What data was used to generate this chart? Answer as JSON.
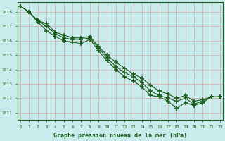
{
  "title": "Graphe pression niveau de la mer (hPa)",
  "bg_color": "#c8ecec",
  "grid_color": "#d8b8b8",
  "line_color": "#1a5c1a",
  "xlabel_color": "#1a5c1a",
  "ylim": [
    1010.5,
    1018.7
  ],
  "xlim": [
    -0.3,
    23.3
  ],
  "yticks": [
    1011,
    1012,
    1013,
    1014,
    1015,
    1016,
    1017,
    1018
  ],
  "xticks": [
    0,
    1,
    2,
    3,
    4,
    5,
    6,
    7,
    8,
    9,
    10,
    11,
    12,
    13,
    14,
    15,
    16,
    17,
    18,
    19,
    20,
    21,
    22,
    23
  ],
  "series": [
    [
      1018.4,
      1018.0,
      1017.3,
      1016.7,
      1016.3,
      1016.0,
      1015.9,
      1015.8,
      1016.1,
      1015.3,
      1014.6,
      1014.0,
      1013.5,
      1013.2,
      1012.8,
      1012.2,
      1012.1,
      1011.8,
      1011.3,
      1011.7,
      1011.5,
      1011.7,
      1012.1,
      1012.1
    ],
    [
      1018.4,
      1018.0,
      1017.4,
      1017.0,
      1016.5,
      1016.2,
      1016.1,
      1016.1,
      1016.2,
      1015.5,
      1014.8,
      1014.2,
      1013.8,
      1013.5,
      1013.1,
      1012.5,
      1012.2,
      1012.0,
      1011.8,
      1012.0,
      1011.6,
      1011.8,
      1012.1,
      1012.1
    ],
    [
      1018.4,
      1018.0,
      1017.4,
      1017.2,
      1016.6,
      1016.4,
      1016.2,
      1016.2,
      1016.3,
      1015.6,
      1015.0,
      1014.5,
      1014.1,
      1013.7,
      1013.4,
      1012.9,
      1012.5,
      1012.3,
      1012.0,
      1012.2,
      1011.8,
      1011.9,
      1012.1,
      1012.1
    ]
  ]
}
